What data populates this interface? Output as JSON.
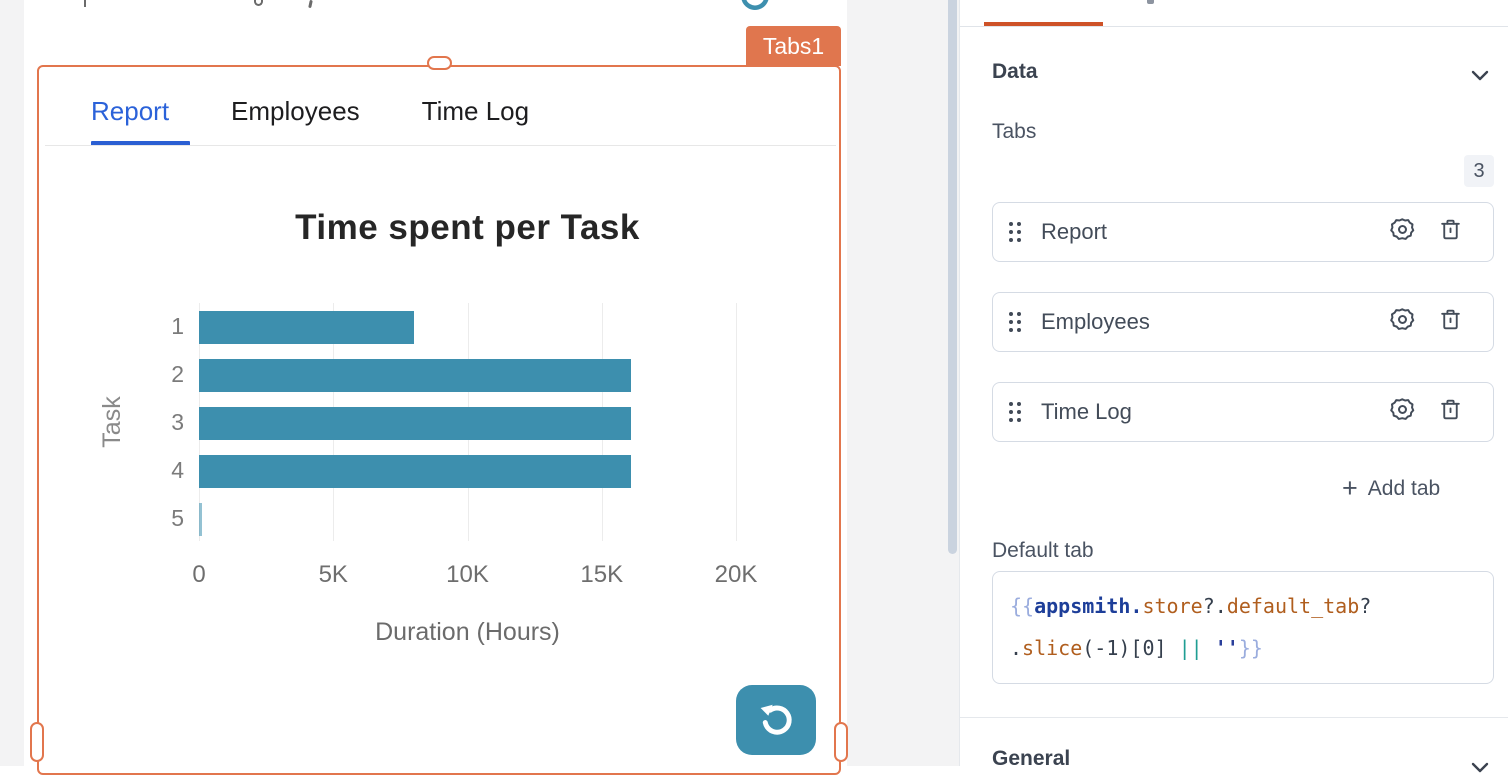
{
  "canvas": {
    "widget_badge_label": "Tabs1",
    "widget_tabs": [
      {
        "label": "Report",
        "active": true
      },
      {
        "label": "Employees",
        "active": false
      },
      {
        "label": "Time Log",
        "active": false
      }
    ]
  },
  "chart_data": {
    "type": "bar",
    "orientation": "horizontal",
    "title": "Time spent per Task",
    "categories": [
      "1",
      "2",
      "3",
      "4",
      "5"
    ],
    "values": [
      8000,
      16100,
      16100,
      16100,
      60
    ],
    "xlabel": "Duration (Hours)",
    "ylabel": "Task",
    "xticks": [
      "0",
      "5K",
      "10K",
      "15K",
      "20K"
    ],
    "xlim": [
      0,
      20000
    ],
    "grid": true,
    "legend": false,
    "bar_color": "#3d8fae"
  },
  "panel": {
    "data_section_title": "Data",
    "tabs_label": "Tabs",
    "tabs_count": "3",
    "tab_items": [
      {
        "label": "Report"
      },
      {
        "label": "Employees"
      },
      {
        "label": "Time Log"
      }
    ],
    "add_tab_label": "Add tab",
    "add_tab_plus": "+",
    "default_tab_label": "Default tab",
    "code_lines": [
      [
        {
          "t": "{{",
          "k": "brace"
        },
        {
          "t": "appsmith",
          "k": "global"
        },
        {
          "t": ".",
          "k": "global"
        },
        {
          "t": "store",
          "k": "prop"
        },
        {
          "t": "?.",
          "k": "punc"
        },
        {
          "t": "default_tab",
          "k": "prop"
        },
        {
          "t": "?",
          "k": "punc"
        }
      ],
      [
        {
          "t": ".",
          "k": "punc"
        },
        {
          "t": "slice",
          "k": "prop"
        },
        {
          "t": "(-1)[0] ",
          "k": "punc"
        },
        {
          "t": "||",
          "k": "op"
        },
        {
          "t": " ",
          "k": "punc"
        },
        {
          "t": "''",
          "k": "string"
        },
        {
          "t": "}}",
          "k": "brace"
        }
      ]
    ],
    "general_section_title": "General"
  },
  "colors": {
    "selection_orange": "#e2764d",
    "panel_tab_orange": "#ce5228",
    "teal": "#3d8fae",
    "active_tab_blue": "#2b62d9"
  },
  "icons": {
    "refresh": "refresh-icon",
    "gear": "gear-icon",
    "trash": "trash-icon",
    "drag": "drag-handle-icon",
    "plus": "plus-icon",
    "chevron": "chevron-down-icon"
  }
}
